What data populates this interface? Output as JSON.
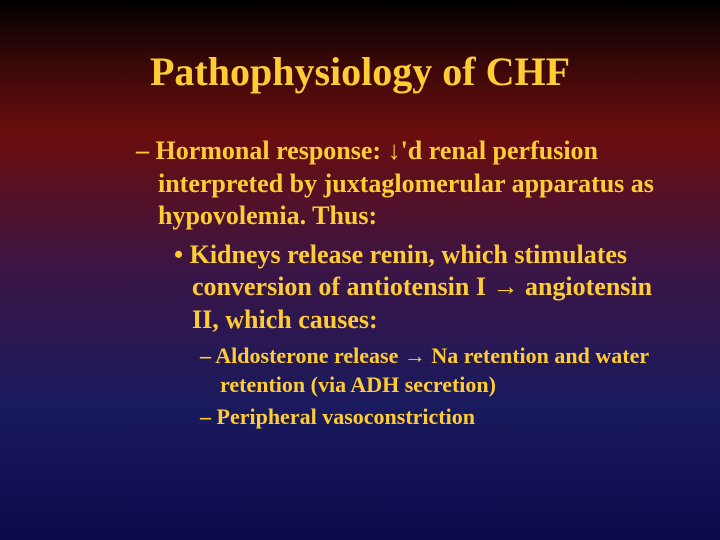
{
  "slide": {
    "title": "Pathophysiology of CHF",
    "background_gradient": [
      "#000000",
      "#3a0808",
      "#6b0d0d",
      "#3a1545",
      "#1a1a5e",
      "#0a0a4a"
    ],
    "text_color": "#ffcc33",
    "title_fontsize": 40,
    "body_fontsize_l1": 26,
    "body_fontsize_l3": 22,
    "font_family": "Times New Roman",
    "items": {
      "l1": "Hormonal response: ↓'d renal perfusion interpreted by juxtaglomerular apparatus as hypovolemia.   Thus:",
      "l2": "Kidneys release renin, which stimulates conversion of antiotensin I → angiotensin II, which causes:",
      "l3a": "Aldosterone release → Na retention and water retention (via ADH secretion)",
      "l3b": "Peripheral vasoconstriction"
    }
  }
}
